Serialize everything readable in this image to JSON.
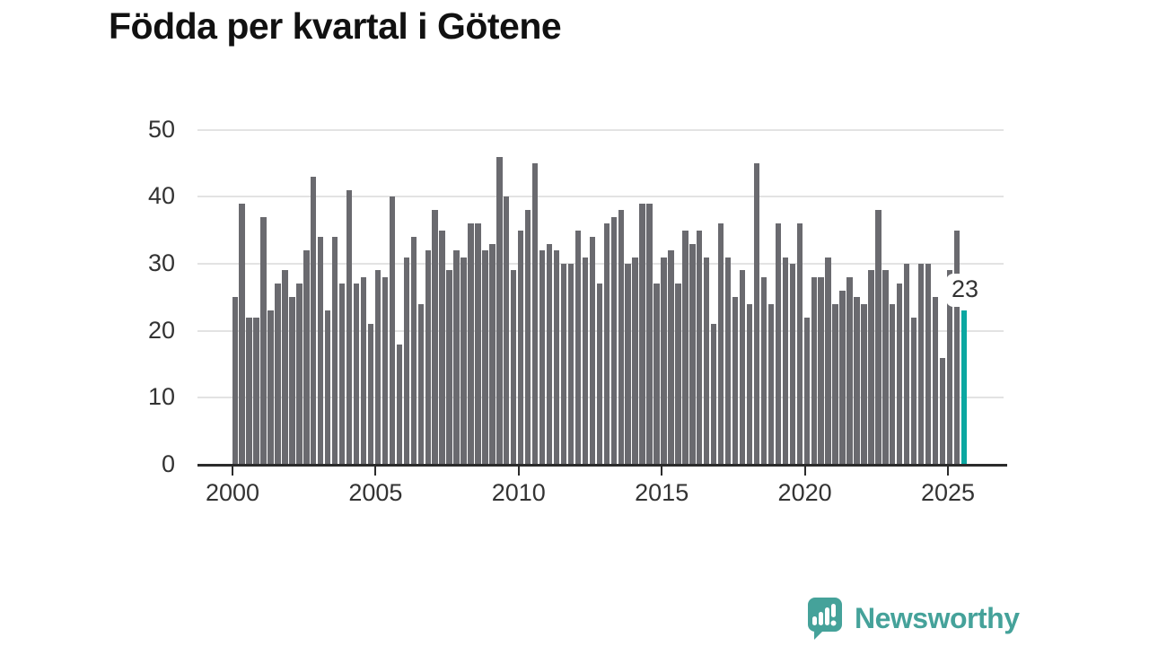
{
  "title": "Födda per kvartal i Götene",
  "annotation": {
    "label": "23"
  },
  "logo": {
    "text": "Newsworthy"
  },
  "colors": {
    "bar": "#6a6a6f",
    "highlight_bar": "#0ba7a1",
    "axis": "#2b2b2b",
    "gridline": "#e3e3e3",
    "tick_label": "#333333",
    "logo_teal": "#45a29a",
    "background": "#ffffff"
  },
  "chart_data": {
    "type": "bar",
    "title": "Födda per kvartal i Götene",
    "xlabel": "",
    "ylabel": "",
    "ylim": [
      0,
      50
    ],
    "grid": "horizontal",
    "y_ticks": [
      0,
      10,
      20,
      30,
      40,
      50
    ],
    "x_tick_labels": [
      "2000",
      "2005",
      "2010",
      "2015",
      "2020",
      "2025"
    ],
    "x_start": "2000-Q1",
    "x_end": "2025-Q3",
    "x_unit": "quarter",
    "highlight_last_bar": true,
    "last_bar_label": "23",
    "values": [
      25,
      39,
      22,
      22,
      37,
      23,
      27,
      29,
      25,
      27,
      32,
      43,
      34,
      23,
      34,
      27,
      41,
      27,
      28,
      21,
      29,
      28,
      40,
      18,
      31,
      34,
      24,
      32,
      38,
      35,
      29,
      32,
      31,
      36,
      36,
      32,
      33,
      46,
      40,
      29,
      35,
      38,
      45,
      32,
      33,
      32,
      30,
      30,
      35,
      31,
      34,
      27,
      36,
      37,
      38,
      30,
      31,
      39,
      39,
      27,
      31,
      32,
      27,
      35,
      33,
      35,
      31,
      21,
      36,
      31,
      25,
      29,
      24,
      45,
      28,
      24,
      36,
      31,
      30,
      36,
      22,
      28,
      28,
      31,
      24,
      26,
      28,
      25,
      24,
      29,
      38,
      29,
      24,
      27,
      30,
      22,
      30,
      30,
      25,
      16,
      29,
      35,
      23
    ]
  }
}
